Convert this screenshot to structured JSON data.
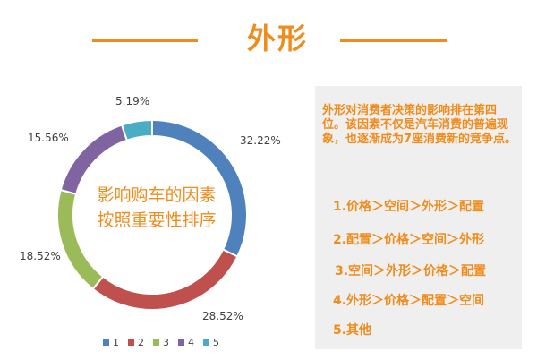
{
  "header": {
    "title": "外形"
  },
  "chart_data": {
    "type": "pie",
    "style": "donut",
    "center_text": [
      "影响购车的因素",
      "按照重要性排序"
    ],
    "series": [
      {
        "name": "1",
        "value": 32.22,
        "label": "32.22%",
        "color": "#4f81bd"
      },
      {
        "name": "2",
        "value": 28.52,
        "label": "28.52%",
        "color": "#c0504d"
      },
      {
        "name": "3",
        "value": 18.52,
        "label": "18.52%",
        "color": "#9bbb59"
      },
      {
        "name": "4",
        "value": 15.56,
        "label": "15.56%",
        "color": "#8064a2"
      },
      {
        "name": "5",
        "value": 5.19,
        "label": "5.19%",
        "color": "#4bacc6"
      }
    ],
    "legend": "bottom",
    "start_angle_deg": 0,
    "direction": "clockwise"
  },
  "panel": {
    "intro": "外形对消费者决策的影响排在第四位。该因素不仅是汽车消费的普遍现象，也逐渐成为7座消费新的竞争点。",
    "rankings": [
      "1.价格＞空间＞外形＞配置",
      "2.配置＞价格＞空间＞外形",
      "3.空间＞外形＞价格＞配置",
      "4.外形＞价格＞配置＞空间",
      "5.其他"
    ]
  },
  "colors": {
    "accent": "#f08c1c",
    "panel_bg": "#efefef"
  }
}
